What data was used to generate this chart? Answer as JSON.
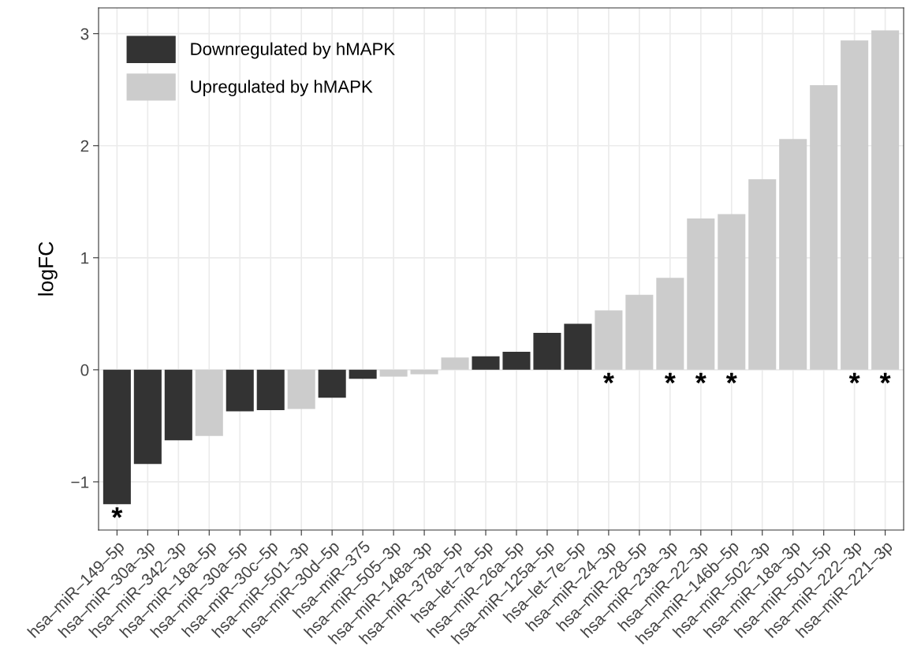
{
  "chart_data": {
    "type": "bar",
    "ylabel": "logFC",
    "categories": [
      "hsa–miR–149–5p",
      "hsa–miR–30a–3p",
      "hsa–miR–342–3p",
      "hsa–miR–18a–5p",
      "hsa–miR–30a–5p",
      "hsa–miR–30c–5p",
      "hsa–miR–501–3p",
      "hsa–miR–30d–5p",
      "hsa–miR–375",
      "hsa–miR–505–3p",
      "hsa–miR–148a–3p",
      "hsa–miR–378a–5p",
      "hsa–let–7a–5p",
      "hsa–miR–26a–5p",
      "hsa–miR–125a–5p",
      "hsa–let–7e–5p",
      "hsa–miR–24–3p",
      "hsa–miR–28–5p",
      "hsa–miR–23a–3p",
      "hsa–miR–22–3p",
      "hsa–miR–146b–5p",
      "hsa–miR–502–3p",
      "hsa–miR–18a–3p",
      "hsa–miR–501–5p",
      "hsa–miR–222–3p",
      "hsa–miR–221–3p"
    ],
    "series": [
      {
        "name": "Downregulated by hMAPK",
        "color": "#333333",
        "values": [
          -1.2,
          -0.84,
          -0.63,
          null,
          -0.37,
          -0.36,
          null,
          -0.25,
          -0.08,
          null,
          null,
          null,
          0.12,
          0.16,
          0.33,
          0.41,
          null,
          null,
          null,
          null,
          null,
          null,
          null,
          null,
          null,
          null
        ]
      },
      {
        "name": "Upregulated by hMAPK",
        "color": "#cccccc",
        "values": [
          null,
          null,
          null,
          -0.59,
          null,
          null,
          -0.35,
          null,
          null,
          -0.06,
          -0.04,
          0.11,
          null,
          null,
          null,
          null,
          0.53,
          0.67,
          0.82,
          1.35,
          1.39,
          1.7,
          2.06,
          2.54,
          2.94,
          3.03
        ]
      }
    ],
    "annotations": [
      {
        "text": "*",
        "x": "hsa–miR–149–5p",
        "y": -1.2
      },
      {
        "text": "*",
        "x": "hsa–miR–24–3p",
        "y": 0
      },
      {
        "text": "*",
        "x": "hsa–miR–23a–3p",
        "y": 0
      },
      {
        "text": "*",
        "x": "hsa–miR–22–3p",
        "y": 0
      },
      {
        "text": "*",
        "x": "hsa–miR–146b–5p",
        "y": 0
      },
      {
        "text": "*",
        "x": "hsa–miR–222–3p",
        "y": 0
      },
      {
        "text": "*",
        "x": "hsa–miR–221–3p",
        "y": 0
      }
    ],
    "ylim": [
      -1.43,
      3.23
    ],
    "yticks": [
      {
        "value": -1,
        "label": "−1"
      },
      0,
      1,
      2,
      3
    ],
    "grid": true,
    "legend": "top left"
  }
}
